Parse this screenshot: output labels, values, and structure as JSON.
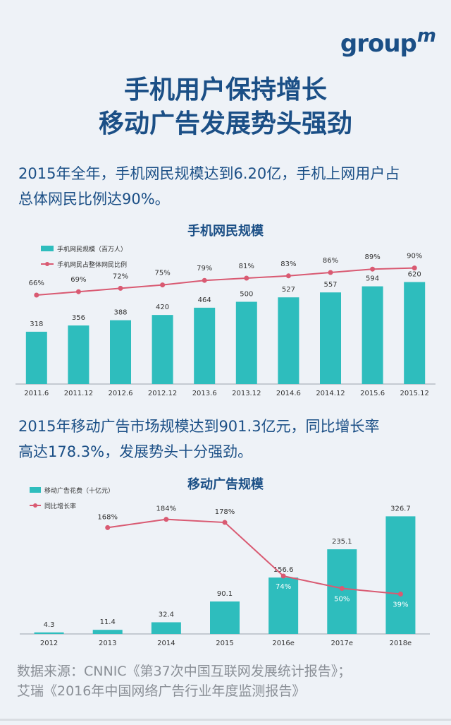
{
  "logo": {
    "text": "group",
    "mark": "m"
  },
  "headline": {
    "line1": "手机用户保持增长",
    "line2": "移动广告发展势头强劲"
  },
  "intro1": {
    "line1": "2015年全年，手机网民规模达到6.20亿，手机上网用户占",
    "line2": "总体网民比例达90%。"
  },
  "intro2": {
    "line1": "2015年移动广告市场规模达到901.3亿元，同比增长率",
    "line2": "高达178.3%，发展势头十分强劲。"
  },
  "source": {
    "line1": "数据来源：CNNIC《第37次中国互联网发展统计报告》；",
    "line2": "艾瑞《2016年中国网络广告行业年度监测报告》"
  },
  "colors": {
    "bar": "#2ebdbd",
    "line": "#d95a72",
    "text": "#1b4f86"
  },
  "chart_data": [
    {
      "type": "bar",
      "title": "手机网民规模",
      "categories": [
        "2011.6",
        "2011.12",
        "2012.6",
        "2012.12",
        "2013.6",
        "2013.12",
        "2014.6",
        "2014.12",
        "2015.6",
        "2015.12"
      ],
      "series": [
        {
          "name": "手机网民规模（百万人）",
          "type": "bar",
          "values": [
            318,
            356,
            388,
            420,
            464,
            500,
            527,
            557,
            594,
            620
          ]
        },
        {
          "name": "手机网民占整体网民比例",
          "type": "line",
          "values": [
            66,
            69,
            72,
            75,
            79,
            81,
            83,
            86,
            89,
            90
          ],
          "labels": [
            "66%",
            "69%",
            "72%",
            "75%",
            "79%",
            "81%",
            "83%",
            "86%",
            "89%",
            "90%"
          ]
        }
      ],
      "bar_labels": [
        "318",
        "356",
        "388",
        "420",
        "464",
        "500",
        "527",
        "557",
        "594",
        "620"
      ]
    },
    {
      "type": "bar",
      "title": "移动广告规模",
      "categories": [
        "2012",
        "2013",
        "2014",
        "2015",
        "2016e",
        "2017e",
        "2018e"
      ],
      "series": [
        {
          "name": "移动广告花费（十亿元）",
          "type": "bar",
          "values": [
            4.3,
            11.4,
            32.4,
            90.1,
            156.6,
            235.1,
            326.7
          ]
        },
        {
          "name": "同比增长率",
          "type": "line",
          "values": [
            null,
            168,
            184,
            178,
            74,
            50,
            39
          ],
          "labels": [
            "",
            "168%",
            "184%",
            "178%",
            "74%",
            "50%",
            "39%"
          ]
        }
      ],
      "bar_labels": [
        "4.3",
        "11.4",
        "32.4",
        "90.1",
        "156.6",
        "235.1",
        "326.7"
      ]
    }
  ]
}
